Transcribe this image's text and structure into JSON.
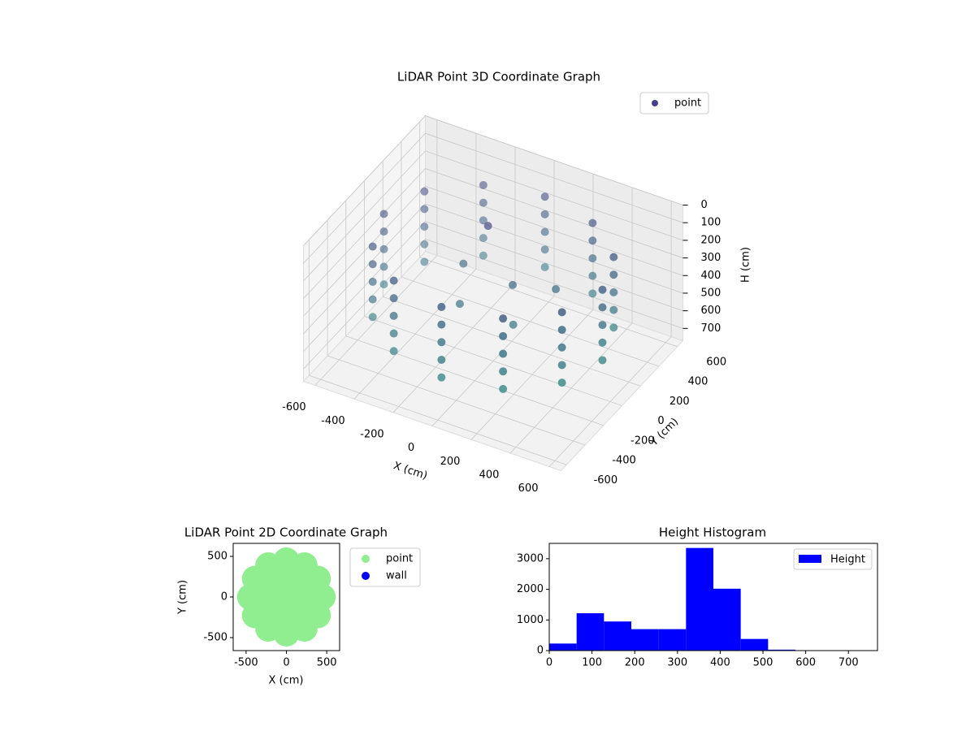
{
  "chart_data": [
    {
      "type": "scatter3d",
      "title": "LiDAR Point 3D Coordinate Graph",
      "x_label": "X (cm)",
      "y_label": "Y (cm)",
      "z_label": "H (cm)",
      "xlim": [
        -660,
        660
      ],
      "ylim": [
        -660,
        660
      ],
      "zlim": [
        0,
        770
      ],
      "z_inverted": true,
      "xticks": [
        -600,
        -400,
        -200,
        0,
        200,
        400,
        600
      ],
      "yticks": [
        -600,
        -400,
        -200,
        0,
        200,
        400,
        600
      ],
      "zticks": [
        0,
        100,
        200,
        300,
        400,
        500,
        600,
        700
      ],
      "grid": true,
      "legend": "upper right",
      "colormap": [
        "#46337e",
        "#3aaf8f"
      ],
      "series": [
        {
          "name": "point",
          "color": "#46408a",
          "x": [
            560,
            560,
            560,
            560,
            560,
            485,
            485,
            485,
            485,
            485,
            280,
            280,
            280,
            280,
            280,
            0,
            0,
            0,
            0,
            0,
            -280,
            -280,
            -280,
            -280,
            -280,
            -485,
            -485,
            -485,
            -485,
            -485,
            -560,
            -560,
            -560,
            -560,
            -560,
            -485,
            -485,
            -485,
            -485,
            -485,
            -280,
            -280,
            -280,
            -280,
            -280,
            0,
            0,
            0,
            0,
            0,
            280,
            280,
            280,
            280,
            280,
            485,
            485,
            485,
            485,
            485,
            -50,
            100,
            -200,
            150,
            -100,
            250
          ],
          "y": [
            0,
            0,
            0,
            0,
            0,
            280,
            280,
            280,
            280,
            280,
            485,
            485,
            485,
            485,
            485,
            560,
            560,
            560,
            560,
            560,
            485,
            485,
            485,
            485,
            485,
            280,
            280,
            280,
            280,
            280,
            0,
            0,
            0,
            0,
            0,
            -280,
            -280,
            -280,
            -280,
            -280,
            -485,
            -485,
            -485,
            -485,
            -485,
            -560,
            -560,
            -560,
            -560,
            -560,
            -485,
            -485,
            -485,
            -485,
            -485,
            -280,
            -280,
            -280,
            -280,
            -280,
            50,
            0,
            100,
            -100,
            -150,
            150
          ],
          "z": [
            150,
            250,
            350,
            450,
            550,
            150,
            250,
            350,
            450,
            550,
            150,
            250,
            350,
            450,
            550,
            150,
            250,
            350,
            450,
            550,
            150,
            250,
            350,
            450,
            550,
            150,
            250,
            350,
            450,
            550,
            150,
            250,
            350,
            450,
            550,
            150,
            250,
            350,
            450,
            550,
            150,
            250,
            350,
            450,
            550,
            150,
            250,
            350,
            450,
            550,
            150,
            250,
            350,
            450,
            550,
            150,
            250,
            350,
            450,
            550,
            50,
            300,
            350,
            450,
            400,
            350
          ]
        }
      ]
    },
    {
      "type": "scatter",
      "title": "LiDAR Point 2D Coordinate Graph",
      "x_label": "X (cm)",
      "y_label": "Y (cm)",
      "xlim": [
        -660,
        660
      ],
      "ylim": [
        -660,
        660
      ],
      "xticks": [
        -500,
        0,
        500
      ],
      "yticks": [
        -500,
        0,
        500
      ],
      "legend": "outside right",
      "series": [
        {
          "name": "point",
          "color": "#90ee90",
          "x": [
            450,
            390,
            225,
            0,
            -225,
            -390,
            -450,
            -390,
            -225,
            0,
            225,
            390,
            200,
            100,
            -100,
            -200,
            -100,
            100,
            0
          ],
          "y": [
            0,
            225,
            390,
            450,
            390,
            225,
            0,
            -225,
            -390,
            -450,
            -390,
            -225,
            0,
            173,
            173,
            0,
            -173,
            -173,
            0
          ]
        },
        {
          "name": "wall",
          "color": "#0000ff",
          "x": [],
          "y": []
        }
      ]
    },
    {
      "type": "histogram",
      "title": "Height Histogram",
      "bins": [
        0,
        64,
        128,
        192,
        256,
        320,
        384,
        448,
        512,
        576,
        640,
        704,
        768
      ],
      "counts": [
        230,
        1220,
        950,
        700,
        700,
        3350,
        2020,
        380,
        30,
        10,
        10,
        10
      ],
      "xlim": [
        0,
        768
      ],
      "ylim": [
        0,
        3500
      ],
      "xticks": [
        0,
        100,
        200,
        300,
        400,
        500,
        600,
        700
      ],
      "yticks": [
        0,
        1000,
        2000,
        3000
      ],
      "legend": "upper right",
      "series_name": "Height",
      "color": "#0000ff"
    }
  ]
}
